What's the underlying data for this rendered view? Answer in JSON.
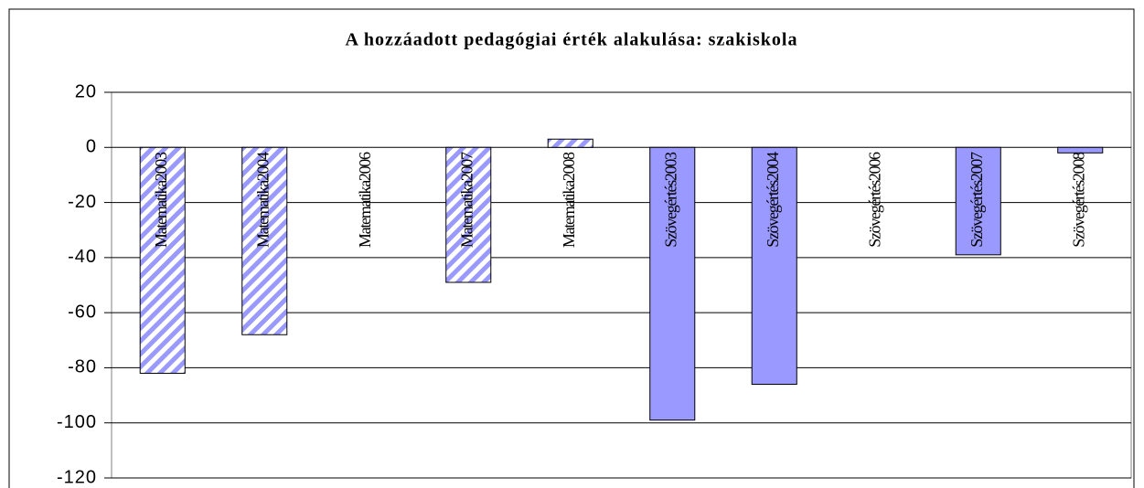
{
  "chart_data": {
    "type": "bar",
    "title": "A hozzáadott pedagógiai érték alakulása: szakiskola",
    "categories": [
      "Matematika2003",
      "Matematika2004",
      "Matematika2006",
      "Matematika2007",
      "Matematika2008",
      "Szövegértés2003",
      "Szövegértés2004",
      "Szövegértés2006",
      "Szövegértés2007",
      "Szövegértés2008"
    ],
    "values": [
      -82,
      -68,
      null,
      -49,
      3,
      -99,
      -86,
      null,
      -39,
      -2
    ],
    "color": "#9999ff",
    "hatched": [
      true,
      true,
      true,
      true,
      true,
      false,
      false,
      false,
      false,
      false
    ],
    "ylim": [
      -120,
      20
    ],
    "yticks": [
      -120,
      -100,
      -80,
      -60,
      -40,
      -20,
      0,
      20
    ],
    "grid": true
  }
}
